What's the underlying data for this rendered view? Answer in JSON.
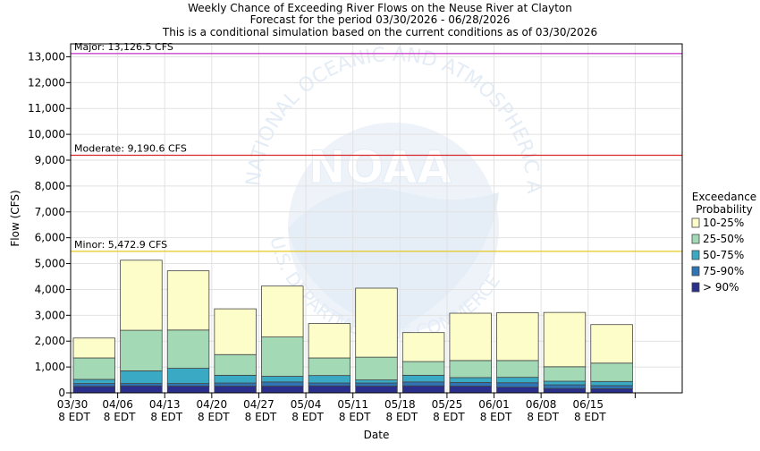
{
  "chart_data": {
    "type": "bar",
    "stacked": true,
    "title_lines": [
      "Weekly Chance of Exceeding River Flows on the Neuse River at Clayton",
      "Forecast for the period 03/30/2026 - 06/28/2026",
      "This is a conditional simulation based on the current conditions as of 03/30/2026"
    ],
    "xlabel": "Date",
    "ylabel": "Flow (CFS)",
    "ylim": [
      0,
      13500
    ],
    "yticks": [
      0,
      1000,
      2000,
      3000,
      4000,
      5000,
      6000,
      7000,
      8000,
      9000,
      10000,
      11000,
      12000,
      13000
    ],
    "ytick_labels": [
      "0",
      "1,000",
      "2,000",
      "3,000",
      "4,000",
      "5,000",
      "6,000",
      "7,000",
      "8,000",
      "9,000",
      "10,000",
      "11,000",
      "12,000",
      "13,000"
    ],
    "grid": true,
    "legend_placement": "right",
    "categories": [
      {
        "date": "03/30",
        "tz": "8 EDT"
      },
      {
        "date": "04/06",
        "tz": "8 EDT"
      },
      {
        "date": "04/13",
        "tz": "8 EDT"
      },
      {
        "date": "04/20",
        "tz": "8 EDT"
      },
      {
        "date": "04/27",
        "tz": "8 EDT"
      },
      {
        "date": "05/04",
        "tz": "8 EDT"
      },
      {
        "date": "05/11",
        "tz": "8 EDT"
      },
      {
        "date": "05/18",
        "tz": "8 EDT"
      },
      {
        "date": "05/25",
        "tz": "8 EDT"
      },
      {
        "date": "06/01",
        "tz": "8 EDT"
      },
      {
        "date": "06/08",
        "tz": "8 EDT"
      },
      {
        "date": "06/15",
        "tz": "8 EDT"
      },
      {
        "date": "",
        "tz": ""
      }
    ],
    "bands": [
      {
        "label": "> 90%",
        "color": "#2b2f8c"
      },
      {
        "label": "75-90%",
        "color": "#2f74b5"
      },
      {
        "label": "50-75%",
        "color": "#3aaac4"
      },
      {
        "label": "25-50%",
        "color": "#a3dab5"
      },
      {
        "label": "10-25%",
        "color": "#fdfdc9"
      }
    ],
    "bars": [
      {
        "bounds": [
          0,
          250,
          360,
          520,
          1350,
          2120
        ]
      },
      {
        "bounds": [
          0,
          270,
          360,
          850,
          2420,
          5130
        ]
      },
      {
        "bounds": [
          0,
          260,
          360,
          950,
          2430,
          4720
        ]
      },
      {
        "bounds": [
          0,
          260,
          380,
          680,
          1480,
          3250
        ]
      },
      {
        "bounds": [
          0,
          260,
          420,
          640,
          2160,
          4130
        ]
      },
      {
        "bounds": [
          0,
          270,
          380,
          670,
          1350,
          2680
        ]
      },
      {
        "bounds": [
          0,
          260,
          380,
          500,
          1380,
          4050
        ]
      },
      {
        "bounds": [
          0,
          270,
          420,
          680,
          1210,
          2330
        ]
      },
      {
        "bounds": [
          0,
          260,
          400,
          590,
          1250,
          3080
        ]
      },
      {
        "bounds": [
          0,
          220,
          390,
          600,
          1250,
          3100
        ]
      },
      {
        "bounds": [
          0,
          170,
          310,
          450,
          1010,
          3110
        ]
      },
      {
        "bounds": [
          0,
          160,
          280,
          440,
          1150,
          2640
        ]
      }
    ],
    "thresholds": [
      {
        "label": "Major: 13,126.5 CFS",
        "value": 13126.5,
        "color": "#cc44cc"
      },
      {
        "label": "Moderate: 9,190.6 CFS",
        "value": 9190.6,
        "color": "#d62828"
      },
      {
        "label": "Minor: 5,472.9 CFS",
        "value": 5472.9,
        "color": "#e6c820"
      }
    ],
    "legend_title_lines": [
      "Exceedance",
      "Probability"
    ],
    "legend_items": [
      {
        "label": "10-25%",
        "color": "#fdfdc9"
      },
      {
        "label": "25-50%",
        "color": "#a3dab5"
      },
      {
        "label": "50-75%",
        "color": "#3aaac4"
      },
      {
        "label": "75-90%",
        "color": "#2f74b5"
      },
      {
        "label": "> 90%",
        "color": "#2b2f8c"
      }
    ],
    "watermark": {
      "text": "NOAA",
      "ring_text": "NATIONAL OCEANIC AND ATMOSPHERIC ADMINISTRATION",
      "lower_text": "U.S. DEPARTMENT OF COMMERCE"
    }
  }
}
